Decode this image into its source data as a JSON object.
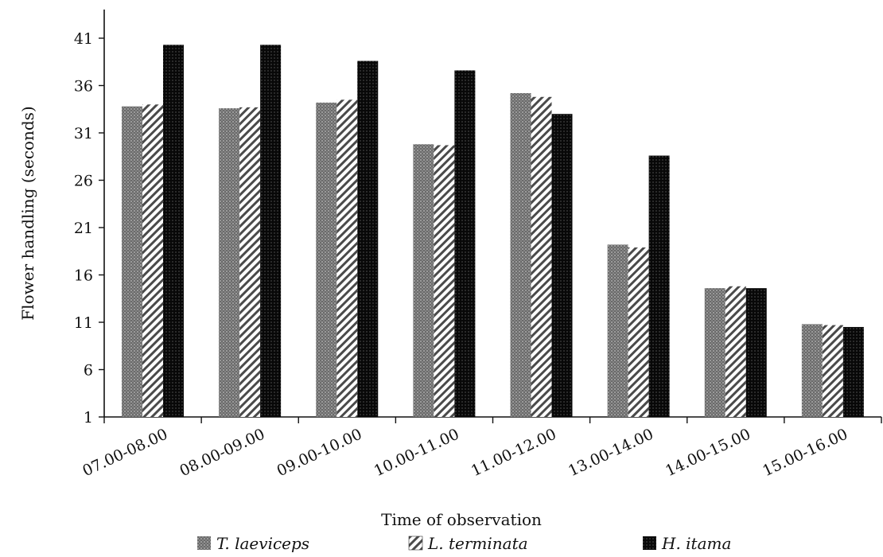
{
  "chart_data": {
    "type": "bar",
    "title": "",
    "xlabel": "Time of observation",
    "ylabel": "Flower handling (seconds)",
    "ylim": [
      1,
      46
    ],
    "yticks": [
      1,
      6,
      11,
      16,
      21,
      26,
      31,
      36,
      41
    ],
    "categories": [
      "07.00-08.00",
      "08.00-09.00",
      "09.00-10.00",
      "10.00-11.00",
      "11.00-12.00",
      "13.00-14.00",
      "14.00-15.00",
      "15.00-16.00"
    ],
    "series": [
      {
        "name": "T. laeviceps",
        "values": [
          33.8,
          33.6,
          34.2,
          29.8,
          35.2,
          19.2,
          14.6,
          10.8
        ],
        "pattern": "grid-gray"
      },
      {
        "name": "L. terminata",
        "values": [
          34.0,
          33.7,
          34.5,
          29.7,
          34.8,
          18.9,
          14.8,
          10.7
        ],
        "pattern": "diagonal-hatch"
      },
      {
        "name": "H. itama",
        "values": [
          40.3,
          40.3,
          38.6,
          37.6,
          33.0,
          28.6,
          14.6,
          10.5
        ],
        "pattern": "black-check"
      }
    ],
    "legend_position": "bottom",
    "grid": false
  }
}
